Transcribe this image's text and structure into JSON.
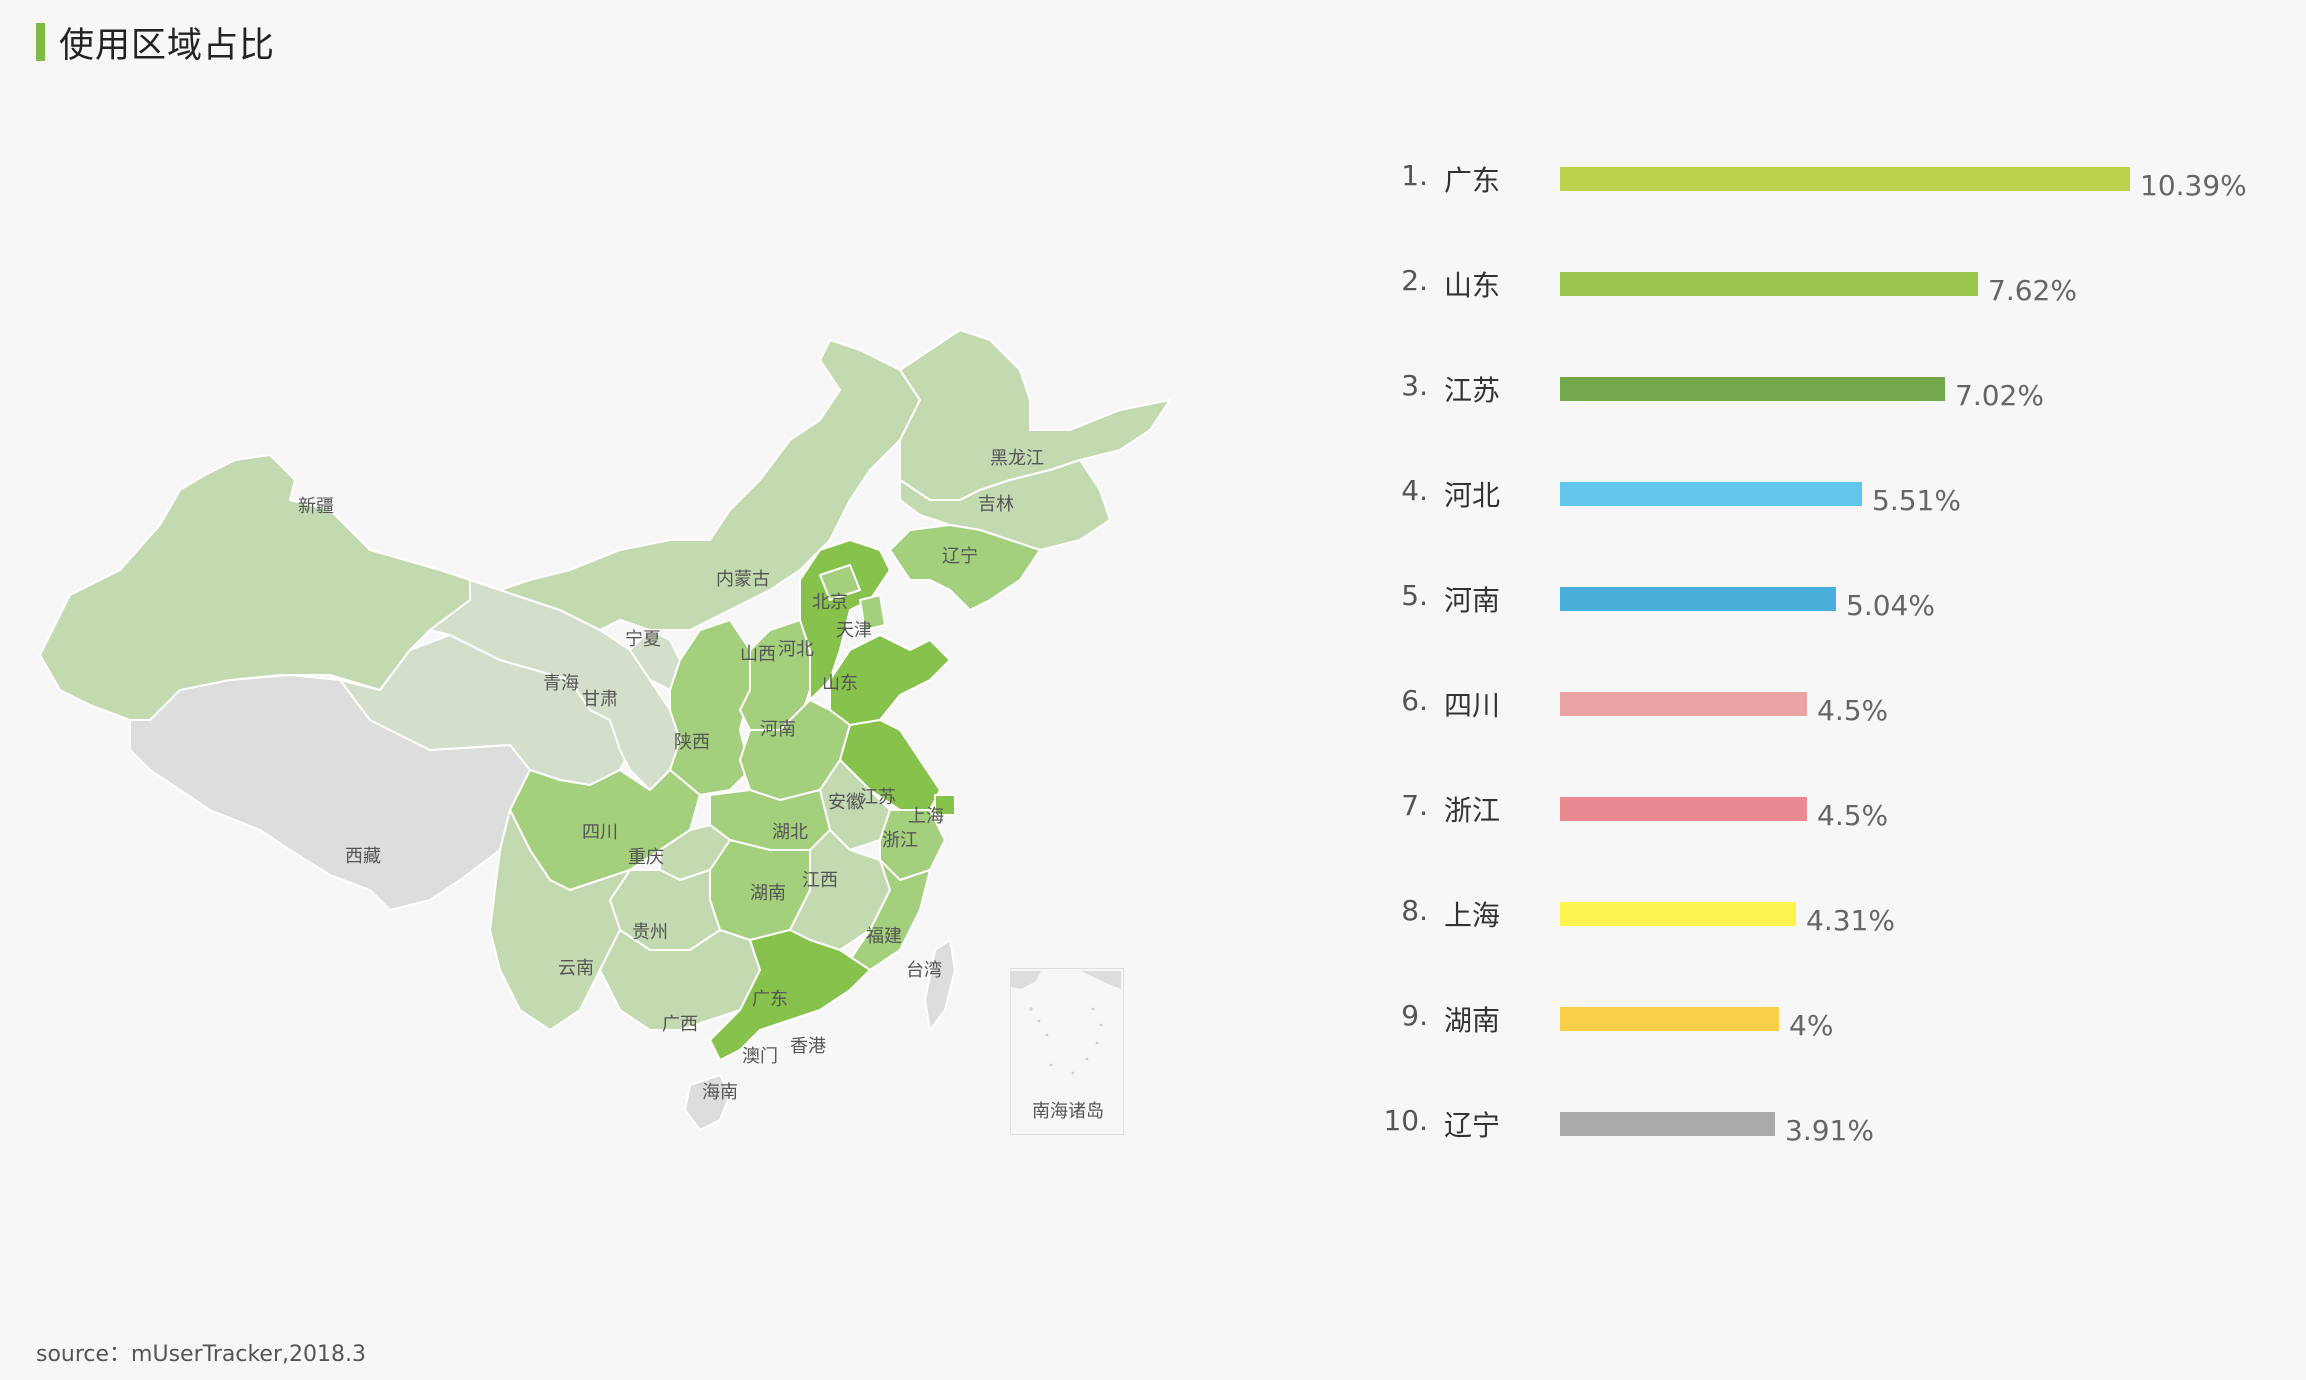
{
  "title": "使用区域占比",
  "source": "source：mUserTracker,2018.3",
  "map": {
    "inset_label": "南海诸岛",
    "province_labels": {
      "xinjiang": "新疆",
      "xizang": "西藏",
      "qinghai": "青海",
      "gansu": "甘肃",
      "neimenggu": "内蒙古",
      "ningxia": "宁夏",
      "heilongjiang": "黑龙江",
      "jilin": "吉林",
      "liaoning": "辽宁",
      "beijing": "北京",
      "tianjin": "天津",
      "hebei": "河北",
      "shanxi": "山西",
      "shandong": "山东",
      "henan": "河南",
      "shaanxi": "陕西",
      "jiangsu": "江苏",
      "anhui": "安徽",
      "shanghai": "上海",
      "sichuan": "四川",
      "chongqing": "重庆",
      "hubei": "湖北",
      "zhejiang": "浙江",
      "hunan": "湖南",
      "jiangxi": "江西",
      "guizhou": "贵州",
      "yunnan": "云南",
      "fujian": "福建",
      "taiwan": "台湾",
      "guangxi": "广西",
      "guangdong": "广东",
      "aomen": "澳门",
      "xianggang": "香港",
      "hainan": "海南"
    },
    "colors": {
      "high": "#86c24c",
      "mid": "#a4cf7c",
      "low": "#c3d9b0",
      "lower": "#d3dfca",
      "none": "#dcdedb",
      "border": "#ffffff"
    }
  },
  "chart_data": {
    "type": "bar",
    "orientation": "horizontal",
    "categories": [
      "广东",
      "山东",
      "江苏",
      "河北",
      "河南",
      "四川",
      "浙江",
      "上海",
      "湖南",
      "辽宁"
    ],
    "ranks": [
      "1.",
      "2.",
      "3.",
      "4.",
      "5.",
      "6.",
      "7.",
      "8.",
      "9.",
      "10."
    ],
    "values": [
      10.39,
      7.62,
      7.02,
      5.51,
      5.04,
      4.5,
      4.5,
      4.31,
      4,
      3.91
    ],
    "value_labels": [
      "10.39%",
      "7.62%",
      "7.02%",
      "5.51%",
      "5.04%",
      "4.5%",
      "4.5%",
      "4.31%",
      "4%",
      "3.91%"
    ],
    "colors": [
      "#bcd24f",
      "#99c54d",
      "#73a74c",
      "#62c5ec",
      "#4aaedb",
      "#eaa4a4",
      "#e88a8f",
      "#fef44f",
      "#f8d048",
      "#aaaaaa"
    ],
    "unit": "%",
    "xlim": [
      0,
      10.39
    ]
  }
}
